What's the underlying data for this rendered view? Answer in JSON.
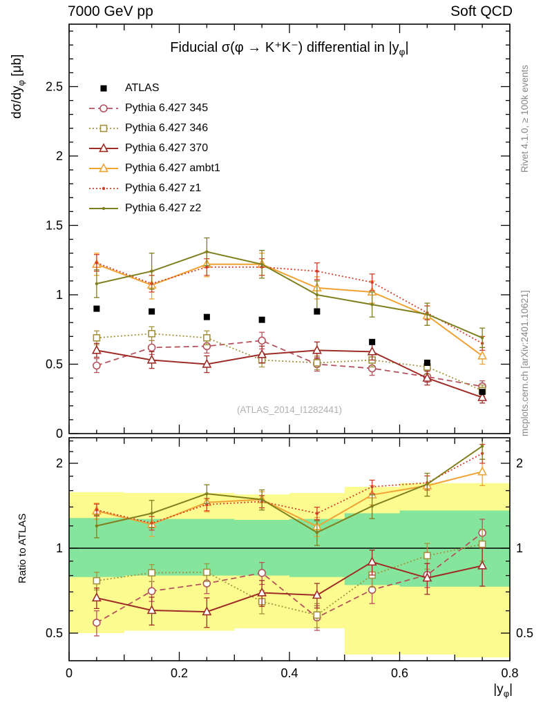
{
  "header": {
    "left": "7000 GeV pp",
    "right": "Soft QCD"
  },
  "side_notes": {
    "top_right": "Rivet 4.1.0, ≥ 100k events",
    "bottom_right": "mcplots.cern.ch [arXiv:2401.10621]"
  },
  "watermark": "(ATLAS_2014_I1282441)",
  "chart_data": {
    "type": "line",
    "title": {
      "main": "Fiducial σ(φ → K⁺K⁻) differential in |y",
      "sub": "φ",
      "close": "|"
    },
    "y_label": {
      "main": "dσ/dy",
      "sub": "φ",
      "unit": " [μb]"
    },
    "ratio_label": "Ratio to ATLAS",
    "x_label": {
      "main": "|y",
      "sub": "φ",
      "close": "|"
    },
    "x": [
      0.05,
      0.15,
      0.25,
      0.35,
      0.45,
      0.55,
      0.65,
      0.75
    ],
    "x_range": [
      0,
      0.8
    ],
    "x_ticks": {
      "values": [
        0,
        0.2,
        0.4,
        0.6,
        0.8
      ],
      "labels": [
        "0",
        "0.2",
        "0.4",
        "0.6",
        "0.8"
      ]
    },
    "y_top": {
      "range": [
        0,
        2.95
      ],
      "ticks": [
        0,
        0.5,
        1,
        1.5,
        2,
        2.5
      ],
      "labels": [
        "0",
        "0.5",
        "1",
        "1.5",
        "2",
        "2.5"
      ]
    },
    "y_ratio": {
      "scale": "log",
      "range": [
        0.4,
        2.46
      ],
      "ticks": [
        0.5,
        1,
        2
      ],
      "labels": [
        "0.5",
        "1",
        "2"
      ]
    },
    "reference": {
      "name": "ATLAS",
      "color": "#000000",
      "marker": "filled-square",
      "line": "none",
      "values": [
        0.9,
        0.88,
        0.84,
        0.82,
        0.88,
        0.66,
        0.51,
        0.3
      ],
      "yerr": [
        0.02,
        0.02,
        0.02,
        0.02,
        0.02,
        0.02,
        0.02,
        0.02
      ]
    },
    "series": [
      {
        "name": "Pythia 6.427 345",
        "color": "#b5515d",
        "line": "dash",
        "marker": "open-circle",
        "values": [
          0.49,
          0.62,
          0.63,
          0.67,
          0.5,
          0.47,
          0.41,
          0.34
        ],
        "yerr": [
          0.05,
          0.05,
          0.05,
          0.06,
          0.05,
          0.05,
          0.04,
          0.04
        ]
      },
      {
        "name": "Pythia 6.427 346",
        "color": "#a4913c",
        "line": "dot",
        "marker": "open-square",
        "values": [
          0.69,
          0.72,
          0.69,
          0.53,
          0.51,
          0.53,
          0.48,
          0.31
        ],
        "yerr": [
          0.05,
          0.05,
          0.05,
          0.05,
          0.05,
          0.05,
          0.05,
          0.04
        ]
      },
      {
        "name": "Pythia 6.427 370",
        "color": "#9e2b25",
        "line": "solid",
        "marker": "open-triangle",
        "values": [
          0.6,
          0.53,
          0.5,
          0.57,
          0.6,
          0.59,
          0.4,
          0.26
        ],
        "yerr": [
          0.05,
          0.06,
          0.06,
          0.06,
          0.06,
          0.06,
          0.05,
          0.04
        ]
      },
      {
        "name": "Pythia 6.427 ambt1",
        "color": "#f0a232",
        "line": "solid",
        "marker": "open-triangle",
        "values": [
          1.22,
          1.07,
          1.22,
          1.22,
          1.05,
          1.02,
          0.85,
          0.56
        ],
        "yerr": [
          0.08,
          0.1,
          0.09,
          0.08,
          0.08,
          0.08,
          0.07,
          0.06
        ]
      },
      {
        "name": "Pythia 6.427 z1",
        "color": "#d23c28",
        "line": "dot",
        "marker": "dot",
        "values": [
          1.23,
          1.08,
          1.2,
          1.2,
          1.17,
          1.09,
          0.87,
          0.65
        ],
        "yerr": [
          0.06,
          0.06,
          0.06,
          0.06,
          0.06,
          0.06,
          0.05,
          0.05
        ]
      },
      {
        "name": "Pythia 6.427 z2",
        "color": "#7f7f1e",
        "line": "solid",
        "marker": "dot",
        "values": [
          1.08,
          1.17,
          1.31,
          1.22,
          1.0,
          0.93,
          0.86,
          0.69
        ],
        "yerr": [
          0.1,
          0.13,
          0.1,
          0.1,
          0.1,
          0.09,
          0.08,
          0.07
        ]
      }
    ],
    "ratio_bands": {
      "bin_edges": [
        0,
        0.1,
        0.2,
        0.3,
        0.4,
        0.5,
        0.6,
        0.7,
        0.8
      ],
      "yellow_lo": [
        0.5,
        0.51,
        0.51,
        0.52,
        0.52,
        0.42,
        0.42,
        0.41
      ],
      "yellow_hi": [
        1.58,
        1.57,
        1.57,
        1.55,
        1.57,
        1.65,
        1.7,
        1.7
      ],
      "green_lo": [
        0.79,
        0.8,
        0.8,
        0.8,
        0.79,
        0.74,
        0.73,
        0.73
      ],
      "green_hi": [
        1.28,
        1.27,
        1.27,
        1.26,
        1.27,
        1.33,
        1.36,
        1.36
      ],
      "yellow_color": "#fbfb8f",
      "green_color": "#86e59c"
    }
  }
}
